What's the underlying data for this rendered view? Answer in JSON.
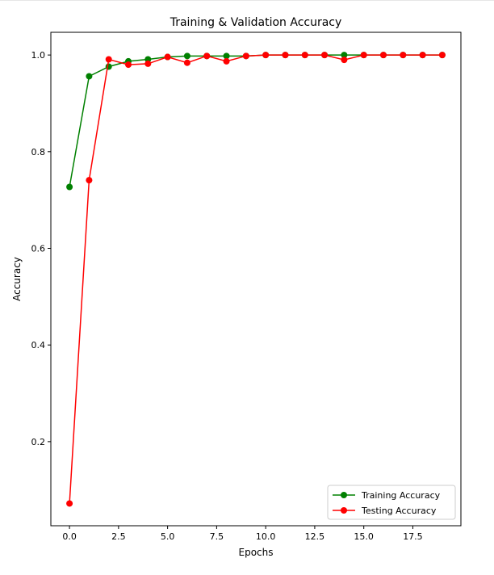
{
  "chart_data": {
    "type": "line",
    "title": "Training & Validation Accuracy",
    "xlabel": "Epochs",
    "ylabel": "Accuracy",
    "xlim": [
      -0.95,
      19.95
    ],
    "ylim": [
      0.026,
      1.047
    ],
    "x_ticks": [
      {
        "value": 0,
        "label": "0.0"
      },
      {
        "value": 2.5,
        "label": "2.5"
      },
      {
        "value": 5,
        "label": "5.0"
      },
      {
        "value": 7.5,
        "label": "7.5"
      },
      {
        "value": 10,
        "label": "10.0"
      },
      {
        "value": 12.5,
        "label": "12.5"
      },
      {
        "value": 15,
        "label": "15.0"
      },
      {
        "value": 17.5,
        "label": "17.5"
      }
    ],
    "y_ticks": [
      {
        "value": 0.2,
        "label": "0.2"
      },
      {
        "value": 0.4,
        "label": "0.4"
      },
      {
        "value": 0.6,
        "label": "0.6"
      },
      {
        "value": 0.8,
        "label": "0.8"
      },
      {
        "value": 1.0,
        "label": "1.0"
      }
    ],
    "grid": false,
    "legend_position": "lower-right",
    "x": [
      0,
      1,
      2,
      3,
      4,
      5,
      6,
      7,
      8,
      9,
      10,
      11,
      12,
      13,
      14,
      15,
      16,
      17,
      18,
      19
    ],
    "series": [
      {
        "name": "Training Accuracy",
        "color": "#008000",
        "values": [
          0.727,
          0.956,
          0.976,
          0.987,
          0.991,
          0.996,
          0.998,
          0.998,
          0.998,
          0.998,
          1.0,
          1.0,
          1.0,
          1.0,
          1.0,
          1.0,
          1.0,
          1.0,
          1.0,
          1.0
        ]
      },
      {
        "name": "Testing Accuracy",
        "color": "#ff0000",
        "values": [
          0.072,
          0.741,
          0.991,
          0.98,
          0.982,
          0.996,
          0.984,
          0.998,
          0.987,
          0.998,
          1.0,
          1.0,
          1.0,
          1.0,
          0.99,
          1.0,
          1.0,
          1.0,
          1.0,
          1.0
        ]
      }
    ]
  }
}
